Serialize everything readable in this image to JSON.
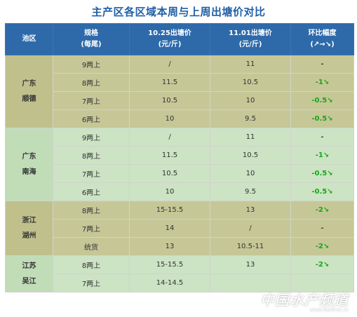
{
  "title": "主产区各区域本周与上周出塘价对比",
  "headers": {
    "region": "池区",
    "spec": "规格",
    "spec_unit": "(每尾)",
    "price_1025": "10.25出塘价",
    "price_1025_unit": "(元/斤)",
    "price_1101": "11.01出塘价",
    "price_1101_unit": "(元/斤)",
    "change": "环比幅度",
    "change_unit": "(↗→↘)"
  },
  "groups": [
    {
      "region_line1": "广东",
      "region_line2": "顺德",
      "style": "olive",
      "rows": [
        {
          "spec": "9两上",
          "p1": "/",
          "p2": "11",
          "chg": "-",
          "trend": "flat"
        },
        {
          "spec": "8两上",
          "p1": "11.5",
          "p2": "10.5",
          "chg": "-1↘",
          "trend": "down"
        },
        {
          "spec": "7两上",
          "p1": "10.5",
          "p2": "10",
          "chg": "-0.5↘",
          "trend": "down"
        },
        {
          "spec": "6两上",
          "p1": "10",
          "p2": "9.5",
          "chg": "-0.5↘",
          "trend": "down"
        }
      ]
    },
    {
      "region_line1": "广东",
      "region_line2": "南海",
      "style": "green",
      "rows": [
        {
          "spec": "9两上",
          "p1": "/",
          "p2": "11",
          "chg": "-",
          "trend": "flat"
        },
        {
          "spec": "8两上",
          "p1": "11.5",
          "p2": "10.5",
          "chg": "-1↘",
          "trend": "down"
        },
        {
          "spec": "7两上",
          "p1": "10.5",
          "p2": "10",
          "chg": "-0.5↘",
          "trend": "down"
        },
        {
          "spec": "6两上",
          "p1": "10",
          "p2": "9.5",
          "chg": "-0.5↘",
          "trend": "down"
        }
      ]
    },
    {
      "region_line1": "浙江",
      "region_line2": "湖州",
      "style": "olive",
      "rows": [
        {
          "spec": "8两上",
          "p1": "15-15.5",
          "p2": "13",
          "chg": "-2↘",
          "trend": "down"
        },
        {
          "spec": "7两上",
          "p1": "14",
          "p2": "/",
          "chg": "-",
          "trend": "flat"
        },
        {
          "spec": "统货",
          "p1": "13",
          "p2": "10.5-11",
          "chg": "-2↘",
          "trend": "down"
        }
      ]
    },
    {
      "region_line1": "江苏",
      "region_line2": "吴江",
      "style": "green",
      "rows": [
        {
          "spec": "8两上",
          "p1": "15-15.5",
          "p2": "13",
          "chg": "-2↘",
          "trend": "down"
        },
        {
          "spec": "7两上",
          "p1": "14-14.5",
          "p2": "",
          "chg": "",
          "trend": "flat"
        }
      ]
    }
  ],
  "watermark": {
    "main": "中国水产频道",
    "sub": "www.fishfirst.cn"
  }
}
